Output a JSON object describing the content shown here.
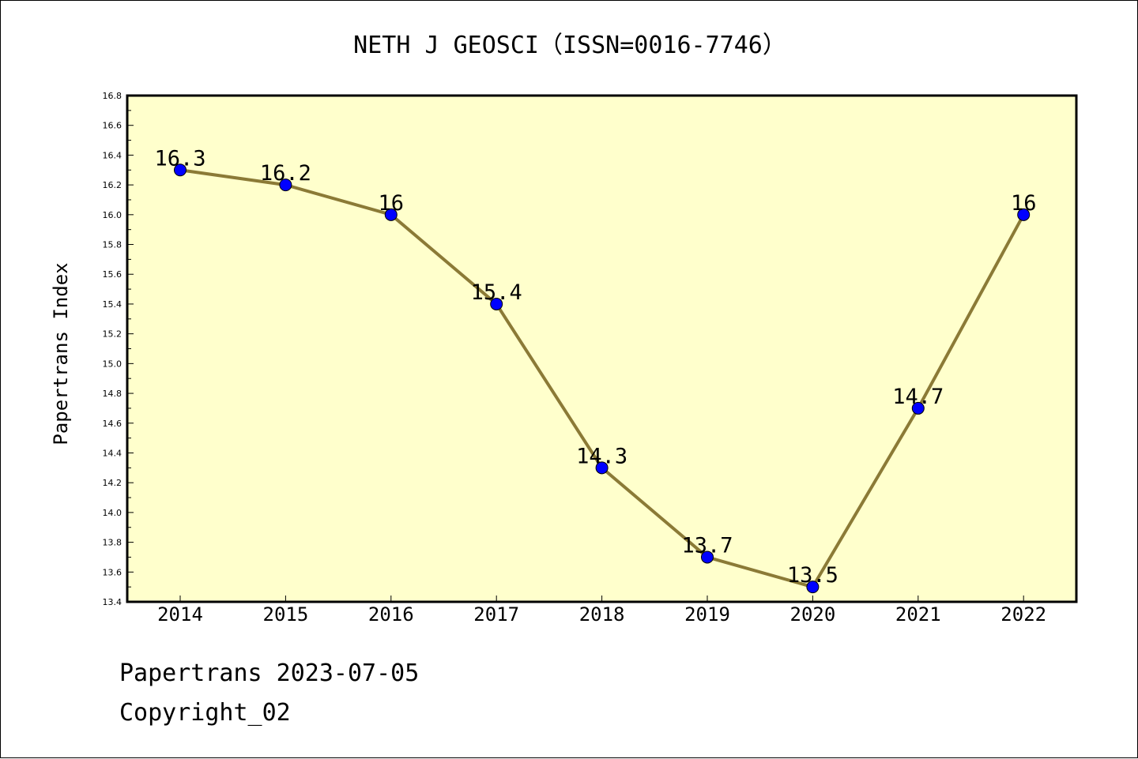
{
  "footer": {
    "line1": "Papertrans 2023-07-05",
    "line2": "Copyright_02"
  },
  "colors": {
    "plot_background": "#ffffcc",
    "line": "#8b7a36",
    "marker": "#0000ff"
  },
  "chart_data": {
    "type": "line",
    "title": "NETH J GEOSCI（ISSN=0016-7746）",
    "xlabel": "",
    "ylabel": "Papertrans Index",
    "categories": [
      "2014",
      "2015",
      "2016",
      "2017",
      "2018",
      "2019",
      "2020",
      "2021",
      "2022"
    ],
    "series": [
      {
        "values": [
          16.3,
          16.2,
          16.0,
          15.4,
          14.3,
          13.7,
          13.5,
          14.7,
          16.0
        ],
        "labels": [
          "16.3",
          "16.2",
          "16",
          "15.4",
          "14.3",
          "13.7",
          "13.5",
          "14.7",
          "16"
        ]
      }
    ],
    "ylim": [
      13.4,
      16.8
    ],
    "yticks": [
      "13.4",
      "13.6",
      "13.8",
      "14.0",
      "14.2",
      "14.4",
      "14.6",
      "14.8",
      "15.0",
      "15.2",
      "15.4",
      "15.6",
      "15.8",
      "16.0",
      "16.2",
      "16.4",
      "16.6",
      "16.8"
    ],
    "grid": false,
    "legend": "none"
  }
}
